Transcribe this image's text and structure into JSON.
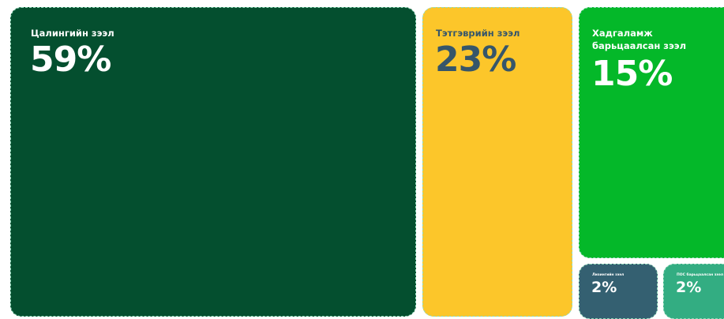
{
  "chart_data": {
    "type": "treemap",
    "categories": [
      "Цалингийн зээл",
      "Тэтгэврийн зээл",
      "Хадгаламж барьцаалсан зээл",
      "Лизингийн зээл",
      "ПОС барьцаалсан зээл"
    ],
    "values": [
      59,
      23,
      15,
      2,
      2
    ],
    "value_labels": [
      "59%",
      "23%",
      "15%",
      "2%",
      "2%"
    ],
    "unit": "%",
    "colors": [
      "#044f2f",
      "#fcc62a",
      "#04b829",
      "#346071",
      "#33ad82"
    ],
    "text_colors": [
      "#ffffff",
      "#36566a",
      "#ffffff",
      "#ffffff",
      "#ffffff"
    ]
  }
}
